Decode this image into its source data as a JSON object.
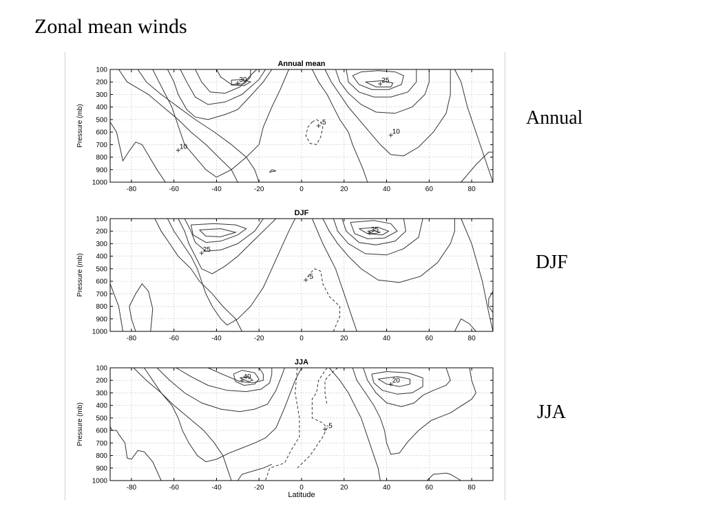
{
  "slide": {
    "title": "Zonal mean winds",
    "side_labels": [
      "Annual",
      "DJF",
      "JJA"
    ]
  },
  "colors": {
    "line": "#333333",
    "grid": "#b0b0b0",
    "frame": "#000000"
  },
  "chart_data": [
    {
      "type": "contour",
      "title": "Annual mean",
      "xlabel": "",
      "ylabel": "Pressure (mb)",
      "xlim": [
        -90,
        90
      ],
      "ylim": [
        1000,
        100
      ],
      "xticks": [
        -80,
        -60,
        -40,
        -20,
        0,
        20,
        40,
        60,
        80
      ],
      "yticks": [
        100,
        200,
        300,
        400,
        500,
        600,
        700,
        800,
        900,
        1000
      ],
      "grid": true,
      "contour_labels": [
        {
          "text": "30",
          "x": -30,
          "y": 210
        },
        {
          "text": "25",
          "x": 37,
          "y": 215
        },
        {
          "text": "-5",
          "x": 8,
          "y": 550
        },
        {
          "text": "10",
          "x": 42,
          "y": 625
        },
        {
          "text": "10",
          "x": -58,
          "y": 745
        }
      ]
    },
    {
      "type": "contour",
      "title": "DJF",
      "xlabel": "",
      "ylabel": "Pressure (mb)",
      "xlim": [
        -90,
        90
      ],
      "ylim": [
        1000,
        100
      ],
      "xticks": [
        -80,
        -60,
        -40,
        -20,
        0,
        20,
        40,
        60,
        80
      ],
      "yticks": [
        100,
        200,
        300,
        400,
        500,
        600,
        700,
        800,
        900,
        1000
      ],
      "grid": true,
      "contour_labels": [
        {
          "text": "35",
          "x": 32,
          "y": 215
        },
        {
          "text": "25",
          "x": -47,
          "y": 375
        },
        {
          "text": "-5",
          "x": 2,
          "y": 590
        }
      ]
    },
    {
      "type": "contour",
      "title": "JJA",
      "xlabel": "Latitude",
      "ylabel": "Pressure (mb)",
      "xlim": [
        -90,
        90
      ],
      "ylim": [
        1000,
        100
      ],
      "xticks": [
        -80,
        -60,
        -40,
        -20,
        0,
        20,
        40,
        60,
        80
      ],
      "yticks": [
        100,
        200,
        300,
        400,
        500,
        600,
        700,
        800,
        900,
        1000
      ],
      "grid": true,
      "contour_labels": [
        {
          "text": "40",
          "x": -28,
          "y": 200
        },
        {
          "text": "20",
          "x": 42,
          "y": 230
        },
        {
          "text": "-5",
          "x": 11,
          "y": 590
        }
      ]
    }
  ]
}
